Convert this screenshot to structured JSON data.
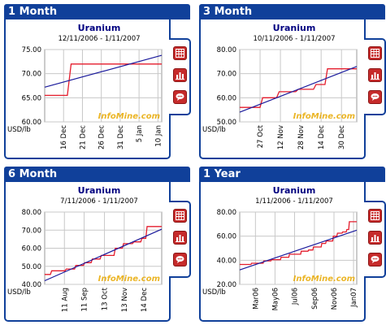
{
  "colors": {
    "header": "#10409a",
    "price_line": "#e41c2c",
    "trend_line": "#1a1a9c",
    "watermark": "#e8a800",
    "button": "#c62b2b"
  },
  "watermark": "InfoMine.com",
  "side_buttons": [
    {
      "icon": "table-icon"
    },
    {
      "icon": "bar-chart-icon"
    },
    {
      "icon": "comment-icon"
    }
  ],
  "panels": [
    {
      "label": "1 Month",
      "chart_data": {
        "type": "line",
        "title": "Uranium",
        "subtitle": "12/11/2006 - 1/11/2007",
        "ylabel": "USD/lb",
        "ylim": [
          60,
          75
        ],
        "yticks": [
          "60.00",
          "65.00",
          "70.00",
          "75.00"
        ],
        "xrange": [
          "2006-12-11",
          "2007-01-11"
        ],
        "xticks": [
          {
            "label": "16 Dec",
            "date": "2006-12-16"
          },
          {
            "label": "21 Dec",
            "date": "2006-12-21"
          },
          {
            "label": "26 Dec",
            "date": "2006-12-26"
          },
          {
            "label": "31 Dec",
            "date": "2006-12-31"
          },
          {
            "label": "5 Jan",
            "date": "2007-01-05"
          },
          {
            "label": "10 Jan",
            "date": "2007-01-10"
          }
        ],
        "series": [
          {
            "style": "step",
            "color": "#e41c2c",
            "points": [
              [
                "2006-12-11",
                65.5
              ],
              [
                "2006-12-17",
                65.5
              ],
              [
                "2006-12-18",
                72
              ],
              [
                "2007-01-11",
                72
              ]
            ]
          },
          {
            "style": "trend",
            "color": "#1a1a9c",
            "points": [
              [
                "2006-12-11",
                67.2
              ],
              [
                "2007-01-11",
                73.8
              ]
            ]
          }
        ],
        "grid": true,
        "legend": "none"
      }
    },
    {
      "label": "3 Month",
      "chart_data": {
        "type": "line",
        "title": "Uranium",
        "subtitle": "10/11/2006 - 1/11/2007",
        "ylabel": "USD/lb",
        "ylim": [
          50,
          80
        ],
        "yticks": [
          "50.00",
          "60.00",
          "70.00",
          "80.00"
        ],
        "xrange": [
          "2006-10-11",
          "2007-01-11"
        ],
        "xticks": [
          {
            "label": "27 Oct",
            "date": "2006-10-27"
          },
          {
            "label": "12 Nov",
            "date": "2006-11-12"
          },
          {
            "label": "28 Nov",
            "date": "2006-11-28"
          },
          {
            "label": "14 Dec",
            "date": "2006-12-14"
          },
          {
            "label": "30 Dec",
            "date": "2006-12-30"
          }
        ],
        "series": [
          {
            "style": "step",
            "color": "#e41c2c",
            "points": [
              [
                "2006-10-11",
                56
              ],
              [
                "2006-10-27",
                56
              ],
              [
                "2006-10-29",
                60
              ],
              [
                "2006-11-09",
                60
              ],
              [
                "2006-11-11",
                62.5
              ],
              [
                "2006-11-24",
                62.5
              ],
              [
                "2006-11-26",
                63.5
              ],
              [
                "2006-12-08",
                63.5
              ],
              [
                "2006-12-10",
                65.5
              ],
              [
                "2006-12-17",
                65.5
              ],
              [
                "2006-12-19",
                72
              ],
              [
                "2007-01-11",
                72
              ]
            ]
          },
          {
            "style": "trend",
            "color": "#1a1a9c",
            "points": [
              [
                "2006-10-11",
                54
              ],
              [
                "2007-01-11",
                73
              ]
            ]
          }
        ],
        "grid": true,
        "legend": "none"
      }
    },
    {
      "label": "6 Month",
      "chart_data": {
        "type": "line",
        "title": "Uranium",
        "subtitle": "7/11/2006 - 1/11/2007",
        "ylabel": "USD/lb",
        "ylim": [
          40,
          80
        ],
        "yticks": [
          "40.00",
          "50.00",
          "60.00",
          "70.00",
          "80.00"
        ],
        "xrange": [
          "2006-07-11",
          "2007-01-11"
        ],
        "xticks": [
          {
            "label": "11 Aug",
            "date": "2006-08-11"
          },
          {
            "label": "11 Sep",
            "date": "2006-09-11"
          },
          {
            "label": "13 Oct",
            "date": "2006-10-13"
          },
          {
            "label": "13 Nov",
            "date": "2006-11-13"
          },
          {
            "label": "14 Dec",
            "date": "2006-12-14"
          }
        ],
        "series": [
          {
            "style": "step",
            "color": "#e41c2c",
            "points": [
              [
                "2006-07-11",
                45.5
              ],
              [
                "2006-07-20",
                45.5
              ],
              [
                "2006-07-22",
                47.5
              ],
              [
                "2006-08-12",
                47.5
              ],
              [
                "2006-08-14",
                48.5
              ],
              [
                "2006-08-27",
                48.5
              ],
              [
                "2006-08-29",
                50.5
              ],
              [
                "2006-09-10",
                50.5
              ],
              [
                "2006-09-12",
                52
              ],
              [
                "2006-09-22",
                52
              ],
              [
                "2006-09-24",
                54
              ],
              [
                "2006-10-06",
                54
              ],
              [
                "2006-10-08",
                56
              ],
              [
                "2006-10-28",
                56
              ],
              [
                "2006-10-30",
                60
              ],
              [
                "2006-11-10",
                60
              ],
              [
                "2006-11-12",
                62.5
              ],
              [
                "2006-11-26",
                62.5
              ],
              [
                "2006-11-28",
                63.5
              ],
              [
                "2006-12-09",
                63.5
              ],
              [
                "2006-12-11",
                65.5
              ],
              [
                "2006-12-17",
                65.5
              ],
              [
                "2006-12-19",
                72
              ],
              [
                "2007-01-11",
                72
              ]
            ]
          },
          {
            "style": "trend",
            "color": "#1a1a9c",
            "points": [
              [
                "2006-07-11",
                42
              ],
              [
                "2007-01-11",
                70.5
              ]
            ]
          }
        ],
        "grid": true,
        "legend": "none"
      }
    },
    {
      "label": "1 Year",
      "chart_data": {
        "type": "line",
        "title": "Uranium",
        "subtitle": "1/11/2006 - 1/11/2007",
        "ylabel": "USD/lb",
        "ylim": [
          20,
          80
        ],
        "yticks": [
          "20.00",
          "40.00",
          "60.00",
          "80.00"
        ],
        "xrange": [
          "2006-01-11",
          "2007-01-11"
        ],
        "xticks": [
          {
            "label": "Mar06",
            "date": "2006-03-01"
          },
          {
            "label": "May06",
            "date": "2006-05-01"
          },
          {
            "label": "Jul06",
            "date": "2006-07-01"
          },
          {
            "label": "Sep06",
            "date": "2006-09-01"
          },
          {
            "label": "Nov06",
            "date": "2006-11-01"
          },
          {
            "label": "Jan07",
            "date": "2007-01-01"
          }
        ],
        "series": [
          {
            "style": "step",
            "color": "#e41c2c",
            "points": [
              [
                "2006-01-11",
                36.5
              ],
              [
                "2006-02-15",
                36.5
              ],
              [
                "2006-02-17",
                37.5
              ],
              [
                "2006-03-25",
                37.5
              ],
              [
                "2006-03-27",
                39.5
              ],
              [
                "2006-04-18",
                39.5
              ],
              [
                "2006-04-20",
                40.5
              ],
              [
                "2006-05-18",
                40.5
              ],
              [
                "2006-05-20",
                42.5
              ],
              [
                "2006-06-13",
                42.5
              ],
              [
                "2006-06-15",
                45
              ],
              [
                "2006-07-20",
                45
              ],
              [
                "2006-07-22",
                47.5
              ],
              [
                "2006-08-12",
                47.5
              ],
              [
                "2006-08-14",
                48.5
              ],
              [
                "2006-08-27",
                48.5
              ],
              [
                "2006-08-29",
                51
              ],
              [
                "2006-09-22",
                51
              ],
              [
                "2006-09-24",
                54
              ],
              [
                "2006-10-06",
                54
              ],
              [
                "2006-10-08",
                56
              ],
              [
                "2006-10-28",
                56
              ],
              [
                "2006-10-30",
                60
              ],
              [
                "2006-11-10",
                60
              ],
              [
                "2006-11-12",
                62.5
              ],
              [
                "2006-11-26",
                62.5
              ],
              [
                "2006-11-28",
                63.5
              ],
              [
                "2006-12-09",
                63.5
              ],
              [
                "2006-12-11",
                65.5
              ],
              [
                "2006-12-17",
                65.5
              ],
              [
                "2006-12-19",
                72
              ],
              [
                "2007-01-11",
                72
              ]
            ]
          },
          {
            "style": "trend",
            "color": "#1a1a9c",
            "points": [
              [
                "2006-01-11",
                32
              ],
              [
                "2007-01-11",
                65
              ]
            ]
          }
        ],
        "grid": true,
        "legend": "none"
      }
    }
  ]
}
